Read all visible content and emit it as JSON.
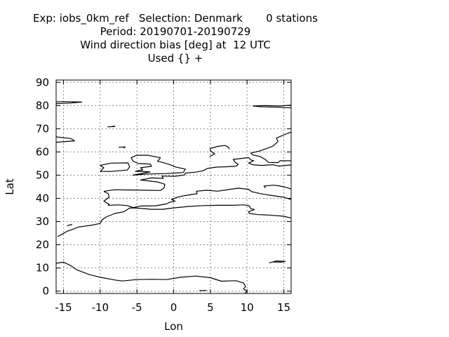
{
  "title": {
    "line1": "Exp: iobs_0km_ref   Selection: Denmark       0 stations",
    "line2": "Period: 20190701-20190729",
    "line3": "Wind direction bias [deg] at  12 UTC",
    "line4": "Used {} +"
  },
  "chart_data": {
    "type": "map",
    "xlabel": "Lon",
    "ylabel": "Lat",
    "xlim": [
      -16,
      16
    ],
    "ylim": [
      -1,
      91
    ],
    "xticks": [
      -15,
      -10,
      -5,
      0,
      5,
      10,
      15
    ],
    "yticks": [
      0,
      10,
      20,
      30,
      40,
      50,
      60,
      70,
      80,
      90
    ],
    "grid": true,
    "grid_style": "dotted",
    "line_color": "#000000",
    "stations": 0,
    "coastlines": [
      [
        [
          -15.8,
          23.5
        ],
        [
          -15.2,
          24.5
        ],
        [
          -14.5,
          25.8
        ],
        [
          -13.6,
          26.8
        ],
        [
          -13.0,
          27.6
        ],
        [
          -12.2,
          28.0
        ],
        [
          -11.0,
          28.5
        ],
        [
          -10.0,
          29.2
        ],
        [
          -9.8,
          30.5
        ],
        [
          -9.2,
          32.0
        ],
        [
          -8.0,
          33.5
        ],
        [
          -6.8,
          34.2
        ],
        [
          -6.0,
          35.8
        ],
        [
          -5.3,
          35.9
        ],
        [
          -3.0,
          35.3
        ],
        [
          -1.5,
          35.3
        ],
        [
          0.0,
          35.9
        ],
        [
          2.0,
          36.5
        ],
        [
          4.0,
          36.9
        ],
        [
          6.0,
          37.0
        ],
        [
          8.0,
          37.0
        ],
        [
          9.5,
          37.2
        ],
        [
          10.3,
          36.8
        ],
        [
          10.5,
          35.6
        ],
        [
          11.0,
          35.2
        ],
        [
          10.2,
          34.2
        ],
        [
          10.3,
          33.5
        ],
        [
          11.5,
          33.0
        ],
        [
          13.0,
          32.8
        ],
        [
          15.0,
          32.3
        ],
        [
          16.0,
          31.5
        ]
      ],
      [
        [
          -9.5,
          43.0
        ],
        [
          -8.8,
          43.4
        ],
        [
          -8.0,
          43.7
        ],
        [
          -6.0,
          43.6
        ],
        [
          -3.5,
          43.5
        ],
        [
          -1.8,
          43.4
        ],
        [
          -1.3,
          44.5
        ],
        [
          -1.2,
          46.1
        ],
        [
          -2.2,
          47.1
        ],
        [
          -4.5,
          47.9
        ],
        [
          -3.0,
          48.8
        ],
        [
          -1.4,
          48.6
        ],
        [
          -1.6,
          49.6
        ],
        [
          0.2,
          49.5
        ],
        [
          1.5,
          50.1
        ],
        [
          1.6,
          50.9
        ],
        [
          3.0,
          51.3
        ],
        [
          4.0,
          51.9
        ],
        [
          4.7,
          53.0
        ],
        [
          6.0,
          53.5
        ],
        [
          7.0,
          53.6
        ],
        [
          8.5,
          53.9
        ],
        [
          8.8,
          54.6
        ],
        [
          8.4,
          55.5
        ],
        [
          8.1,
          56.8
        ],
        [
          9.0,
          57.1
        ],
        [
          10.2,
          57.6
        ],
        [
          10.5,
          56.6
        ],
        [
          10.9,
          56.2
        ],
        [
          10.2,
          55.2
        ],
        [
          10.9,
          54.4
        ],
        [
          12.0,
          54.2
        ],
        [
          13.5,
          54.5
        ],
        [
          14.3,
          53.9
        ],
        [
          16.0,
          54.4
        ]
      ],
      [
        [
          -9.5,
          43.0
        ],
        [
          -8.9,
          42.0
        ],
        [
          -8.8,
          40.5
        ],
        [
          -9.5,
          38.8
        ],
        [
          -8.8,
          37.5
        ],
        [
          -8.9,
          37.0
        ],
        [
          -7.5,
          37.2
        ],
        [
          -6.3,
          36.9
        ],
        [
          -5.5,
          36.0
        ],
        [
          -4.5,
          36.7
        ],
        [
          -2.5,
          36.8
        ],
        [
          -1.0,
          37.6
        ],
        [
          -0.5,
          38.3
        ],
        [
          0.2,
          38.8
        ],
        [
          -0.3,
          39.5
        ],
        [
          0.5,
          40.5
        ],
        [
          1.5,
          41.2
        ],
        [
          3.2,
          42.0
        ],
        [
          3.1,
          43.1
        ],
        [
          4.5,
          43.5
        ],
        [
          6.0,
          43.1
        ],
        [
          7.5,
          43.8
        ],
        [
          8.8,
          44.4
        ],
        [
          10.2,
          43.9
        ],
        [
          10.6,
          42.9
        ],
        [
          12.0,
          41.9
        ],
        [
          13.5,
          41.2
        ],
        [
          15.0,
          40.5
        ],
        [
          16.0,
          39.5
        ]
      ],
      [
        [
          12.5,
          44.5
        ],
        [
          12.3,
          45.3
        ],
        [
          13.6,
          45.7
        ],
        [
          14.5,
          45.3
        ],
        [
          15.6,
          44.5
        ],
        [
          16.0,
          44.0
        ]
      ],
      [
        [
          -5.6,
          50.0
        ],
        [
          -3.5,
          50.5
        ],
        [
          -1.0,
          50.7
        ],
        [
          1.3,
          51.1
        ],
        [
          1.6,
          52.6
        ],
        [
          0.3,
          53.5
        ],
        [
          -0.5,
          54.5
        ],
        [
          -1.5,
          55.5
        ],
        [
          -2.2,
          56.0
        ],
        [
          -1.8,
          57.5
        ],
        [
          -3.5,
          58.6
        ],
        [
          -5.0,
          58.6
        ],
        [
          -5.8,
          57.5
        ],
        [
          -5.5,
          56.0
        ],
        [
          -4.8,
          55.0
        ],
        [
          -3.2,
          54.8
        ],
        [
          -3.0,
          53.8
        ],
        [
          -4.5,
          53.2
        ],
        [
          -4.2,
          52.3
        ],
        [
          -5.2,
          51.7
        ],
        [
          -3.2,
          51.4
        ],
        [
          -5.6,
          50.0
        ]
      ],
      [
        [
          -10.0,
          51.6
        ],
        [
          -9.5,
          53.2
        ],
        [
          -10.0,
          54.2
        ],
        [
          -8.5,
          55.2
        ],
        [
          -6.2,
          55.3
        ],
        [
          -6.0,
          53.6
        ],
        [
          -6.3,
          52.2
        ],
        [
          -8.5,
          51.6
        ],
        [
          -10.0,
          51.6
        ]
      ],
      [
        [
          4.9,
          58.0
        ],
        [
          5.6,
          59.2
        ],
        [
          5.0,
          60.5
        ],
        [
          5.0,
          61.5
        ],
        [
          6.0,
          62.4
        ],
        [
          7.0,
          62.8
        ],
        [
          7.5,
          61.9
        ],
        [
          7.6,
          61.2
        ]
      ],
      [
        [
          10.5,
          59.5
        ],
        [
          10.8,
          58.7
        ],
        [
          11.8,
          58.0
        ],
        [
          12.5,
          56.7
        ],
        [
          12.9,
          55.5
        ],
        [
          14.2,
          55.4
        ],
        [
          14.5,
          56.2
        ],
        [
          16.0,
          56.2
        ]
      ],
      [
        [
          10.5,
          59.5
        ],
        [
          11.8,
          60.5
        ],
        [
          13.5,
          62.5
        ],
        [
          14.2,
          64.5
        ],
        [
          14.0,
          66.0
        ],
        [
          15.5,
          68.0
        ],
        [
          16.0,
          68.5
        ]
      ],
      [
        [
          -16.0,
          80.8
        ],
        [
          -14.0,
          81.1
        ],
        [
          -12.5,
          81.5
        ],
        [
          -15.0,
          81.7
        ],
        [
          -16.0,
          81.6
        ]
      ],
      [
        [
          10.8,
          79.8
        ],
        [
          12.0,
          79.5
        ],
        [
          14.0,
          79.3
        ],
        [
          16.0,
          79.0
        ]
      ],
      [
        [
          10.8,
          79.8
        ],
        [
          12.5,
          80.0
        ],
        [
          14.5,
          79.8
        ],
        [
          16.0,
          80.2
        ]
      ],
      [
        [
          -16.0,
          66.5
        ],
        [
          -14.0,
          65.8
        ],
        [
          -13.5,
          64.8
        ],
        [
          -16.0,
          64.2
        ]
      ],
      [
        [
          -9.0,
          70.8
        ],
        [
          -8.0,
          71.0
        ],
        [
          -8.3,
          71.2
        ]
      ],
      [
        [
          -7.5,
          62.0
        ],
        [
          -6.6,
          62.2
        ],
        [
          -6.8,
          61.6
        ]
      ],
      [
        [
          -14.5,
          28.1
        ],
        [
          -14.2,
          28.5
        ],
        [
          -13.8,
          28.7
        ]
      ],
      [
        [
          -16.0,
          12.0
        ],
        [
          -15.0,
          12.5
        ],
        [
          -14.0,
          11.0
        ],
        [
          -13.2,
          9.2
        ],
        [
          -11.5,
          7.2
        ],
        [
          -10.0,
          6.0
        ],
        [
          -8.0,
          4.8
        ],
        [
          -7.0,
          4.4
        ],
        [
          -5.0,
          5.0
        ],
        [
          -3.0,
          5.1
        ],
        [
          -1.0,
          5.0
        ],
        [
          1.0,
          6.0
        ],
        [
          3.0,
          6.5
        ],
        [
          5.0,
          5.8
        ],
        [
          6.5,
          4.3
        ],
        [
          8.5,
          4.5
        ],
        [
          9.5,
          3.5
        ],
        [
          9.8,
          2.0
        ],
        [
          9.5,
          1.0
        ],
        [
          10.0,
          0.0
        ],
        [
          9.7,
          -1.0
        ]
      ],
      [
        [
          13.0,
          12.2
        ],
        [
          14.0,
          13.0
        ],
        [
          15.2,
          12.8
        ],
        [
          14.6,
          12.5
        ],
        [
          13.5,
          12.6
        ]
      ],
      [
        [
          3.5,
          0.2
        ],
        [
          4.5,
          0.3
        ]
      ]
    ]
  }
}
